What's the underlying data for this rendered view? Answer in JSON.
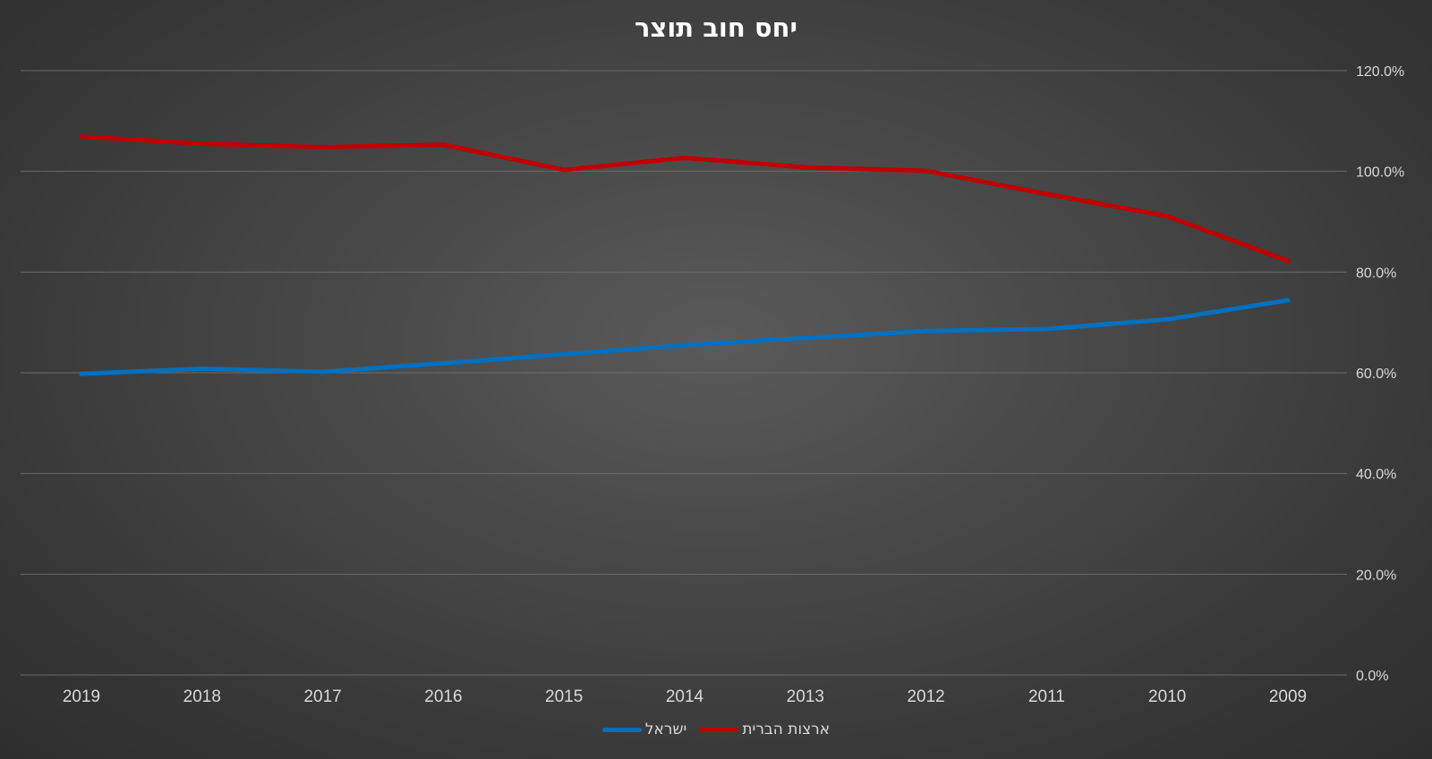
{
  "chart_data": {
    "type": "line",
    "title": "יחס חוב תוצר",
    "categories": [
      "2019",
      "2018",
      "2017",
      "2016",
      "2015",
      "2014",
      "2013",
      "2012",
      "2011",
      "2010",
      "2009"
    ],
    "series": [
      {
        "name": "ארצות הברית",
        "color": "#c00000",
        "values": [
          106.9,
          105.5,
          104.8,
          105.3,
          100.3,
          102.7,
          100.8,
          100.1,
          95.5,
          91.1,
          82.2
        ]
      },
      {
        "name": "ישראל",
        "color": "#0070c0",
        "values": [
          59.8,
          60.8,
          60.2,
          61.9,
          63.7,
          65.5,
          66.9,
          68.3,
          68.7,
          70.6,
          74.4
        ]
      }
    ],
    "y_axis": {
      "position": "right",
      "min": 0,
      "max": 120,
      "step": 20,
      "tick_labels": [
        "0.0%",
        "20.0%",
        "40.0%",
        "60.0%",
        "80.0%",
        "100.0%",
        "120.0%"
      ]
    },
    "grid": true,
    "legend_position": "bottom"
  }
}
